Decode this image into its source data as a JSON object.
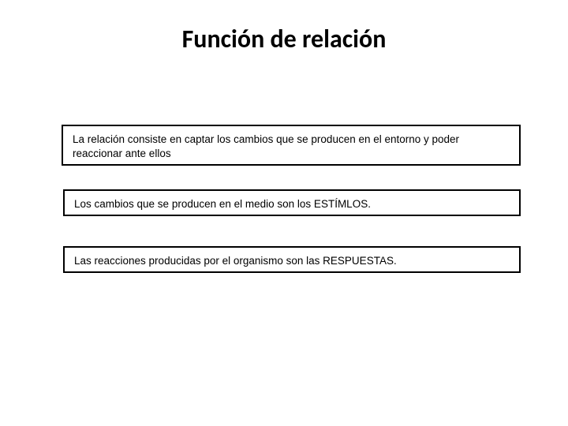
{
  "title": "Función de relación",
  "boxes": {
    "b1": "La relación consiste en captar los cambios que se producen en el entorno y poder reaccionar ante ellos",
    "b2": "Los cambios que se producen en el medio son los ESTÍMLOS.",
    "b3": "Las reacciones producidas por el organismo son las RESPUESTAS."
  },
  "colors": {
    "background": "#ffffff",
    "text": "#000000",
    "border": "#000000"
  },
  "typography": {
    "title_fontsize": 32,
    "title_weight": "bold",
    "body_fontsize": 13.5
  }
}
